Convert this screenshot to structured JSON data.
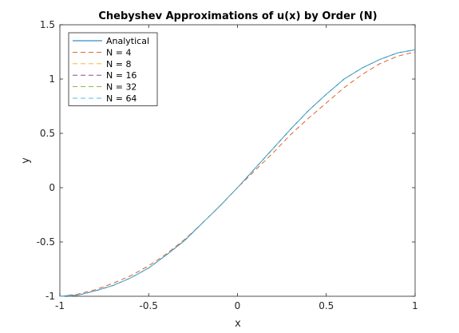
{
  "chart_data": {
    "type": "line",
    "title": "Chebyshev Approximations of u(x) by Order (N)",
    "xlabel": "x",
    "ylabel": "y",
    "xlim": [
      -1,
      1
    ],
    "ylim": [
      -1,
      1.5
    ],
    "xticks": [
      -1,
      -0.5,
      0,
      0.5,
      1
    ],
    "xtick_labels": [
      "-1",
      "-0.5",
      "0",
      "0.5",
      "1"
    ],
    "yticks": [
      -1,
      -0.5,
      0,
      0.5,
      1,
      1.5
    ],
    "ytick_labels": [
      "-1",
      "-0.5",
      "0",
      "0.5",
      "1",
      "1.5"
    ],
    "grid": false,
    "legend_position": "top-left",
    "x": [
      -1,
      -0.9,
      -0.8,
      -0.7,
      -0.6,
      -0.5,
      -0.4,
      -0.3,
      -0.2,
      -0.1,
      0,
      0.1,
      0.2,
      0.3,
      0.4,
      0.5,
      0.6,
      0.7,
      0.8,
      0.9,
      1
    ],
    "series": [
      {
        "name": "Analytical",
        "color": "#0072BD",
        "dash": "solid",
        "values": [
          -1,
          -0.99,
          -0.95,
          -0.9,
          -0.83,
          -0.74,
          -0.62,
          -0.49,
          -0.33,
          -0.17,
          0.0,
          0.18,
          0.36,
          0.54,
          0.71,
          0.86,
          1.0,
          1.1,
          1.18,
          1.24,
          1.27
        ]
      },
      {
        "name": "N = 4",
        "color": "#D95319",
        "dash": "dashed",
        "values": [
          -1,
          -0.98,
          -0.94,
          -0.88,
          -0.81,
          -0.72,
          -0.61,
          -0.48,
          -0.33,
          -0.17,
          0.0,
          0.16,
          0.32,
          0.49,
          0.64,
          0.78,
          0.92,
          1.04,
          1.14,
          1.21,
          1.25
        ]
      },
      {
        "name": "N = 8",
        "color": "#EDB120",
        "dash": "dashed",
        "values": [
          -1,
          -0.99,
          -0.95,
          -0.9,
          -0.83,
          -0.74,
          -0.62,
          -0.49,
          -0.33,
          -0.17,
          0.0,
          0.18,
          0.36,
          0.54,
          0.71,
          0.86,
          1.0,
          1.1,
          1.18,
          1.24,
          1.27
        ]
      },
      {
        "name": "N = 16",
        "color": "#7E2F8E",
        "dash": "dashed",
        "values": [
          -1,
          -0.99,
          -0.95,
          -0.9,
          -0.83,
          -0.74,
          -0.62,
          -0.49,
          -0.33,
          -0.17,
          0.0,
          0.18,
          0.36,
          0.54,
          0.71,
          0.86,
          1.0,
          1.1,
          1.18,
          1.24,
          1.27
        ]
      },
      {
        "name": "N = 32",
        "color": "#77AC30",
        "dash": "dashed",
        "values": [
          -1,
          -0.99,
          -0.95,
          -0.9,
          -0.83,
          -0.74,
          -0.62,
          -0.49,
          -0.33,
          -0.17,
          0.0,
          0.18,
          0.36,
          0.54,
          0.71,
          0.86,
          1.0,
          1.1,
          1.18,
          1.24,
          1.27
        ]
      },
      {
        "name": "N = 64",
        "color": "#4DBEEE",
        "dash": "dashed",
        "values": [
          -1,
          -0.99,
          -0.95,
          -0.9,
          -0.83,
          -0.74,
          -0.62,
          -0.49,
          -0.33,
          -0.17,
          0.0,
          0.18,
          0.36,
          0.54,
          0.71,
          0.86,
          1.0,
          1.1,
          1.18,
          1.24,
          1.27
        ]
      }
    ]
  }
}
